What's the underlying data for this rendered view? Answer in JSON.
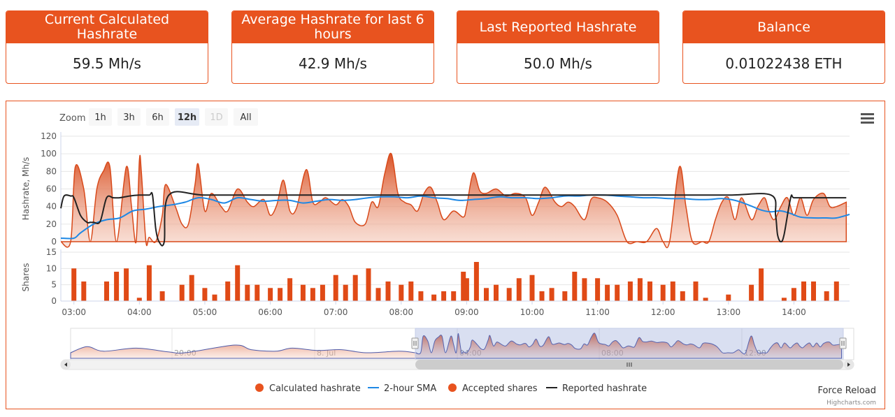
{
  "stats": [
    {
      "title": "Current Calculated Hashrate",
      "value": "59.5 Mh/s"
    },
    {
      "title": "Average Hashrate for last 6 hours",
      "value": "42.9 Mh/s"
    },
    {
      "title": "Last Reported Hashrate",
      "value": "50.0 Mh/s"
    },
    {
      "title": "Balance",
      "value": "0.01022438 ETH"
    }
  ],
  "zoom": {
    "label": "Zoom",
    "buttons": [
      "1h",
      "3h",
      "6h",
      "12h",
      "1D",
      "All"
    ],
    "selected": "12h",
    "disabled": [
      "1D"
    ]
  },
  "icons": {
    "menu": "hamburger-menu-icon",
    "scroll_left": "arrow-left-icon",
    "scroll_right": "arrow-right-icon",
    "scrollbar_grip": "grip-lines-icon",
    "navigator_handle": "drag-handle-icon"
  },
  "colors": {
    "accent": "#e8531f",
    "sma": "#1e88e5",
    "reported": "#222222"
  },
  "footer": {
    "force_reload": "Force Reload",
    "credits": "Highcharts.com"
  },
  "chart_data": [
    {
      "type": "area",
      "ylabel": "Hashrate, Mh/s",
      "ylim": [
        0,
        120
      ],
      "yticks": [
        0,
        20,
        40,
        60,
        80,
        100,
        120
      ],
      "xlim": [
        2.8,
        14.85
      ],
      "xticks": [
        "03:00",
        "04:00",
        "05:00",
        "06:00",
        "07:00",
        "08:00",
        "09:00",
        "10:00",
        "11:00",
        "12:00",
        "13:00",
        "14:00"
      ],
      "series": [
        {
          "name": "Calculated hashrate",
          "x": [
            2.8,
            2.95,
            3.02,
            3.15,
            3.25,
            3.35,
            3.45,
            3.55,
            3.65,
            3.8,
            3.88,
            3.95,
            4.0,
            4.03,
            4.1,
            4.15,
            4.25,
            4.35,
            4.4,
            4.55,
            4.65,
            4.75,
            4.85,
            4.9,
            5.0,
            5.1,
            5.25,
            5.35,
            5.5,
            5.65,
            5.75,
            5.9,
            6.0,
            6.1,
            6.2,
            6.3,
            6.4,
            6.55,
            6.65,
            6.75,
            6.85,
            7.0,
            7.1,
            7.2,
            7.3,
            7.45,
            7.55,
            7.65,
            7.75,
            7.85,
            7.95,
            8.05,
            8.15,
            8.25,
            8.35,
            8.45,
            8.55,
            8.65,
            8.8,
            8.95,
            9.0,
            9.1,
            9.2,
            9.3,
            9.45,
            9.6,
            9.75,
            9.9,
            10.0,
            10.1,
            10.2,
            10.35,
            10.45,
            10.55,
            10.65,
            10.8,
            10.9,
            11.0,
            11.15,
            11.3,
            11.45,
            11.6,
            11.75,
            11.9,
            12.0,
            12.1,
            12.25,
            12.35,
            12.45,
            12.6,
            12.7,
            12.8,
            12.9,
            13.0,
            13.1,
            13.2,
            13.35,
            13.45,
            13.55,
            13.62,
            13.7,
            13.8,
            13.9,
            14.0,
            14.1,
            14.2,
            14.3,
            14.45,
            14.55,
            14.65,
            14.8
          ],
          "values": [
            0,
            0,
            85,
            60,
            0,
            60,
            80,
            85,
            0,
            85,
            40,
            0,
            92,
            80,
            0,
            5,
            0,
            30,
            65,
            40,
            20,
            20,
            65,
            88,
            35,
            55,
            40,
            35,
            60,
            45,
            40,
            48,
            30,
            42,
            70,
            35,
            38,
            82,
            45,
            45,
            50,
            42,
            48,
            40,
            22,
            20,
            45,
            40,
            78,
            100,
            55,
            45,
            42,
            35,
            55,
            62,
            45,
            25,
            35,
            28,
            40,
            78,
            58,
            55,
            60,
            52,
            55,
            50,
            30,
            45,
            62,
            45,
            40,
            45,
            40,
            25,
            48,
            50,
            45,
            30,
            0,
            0,
            0,
            15,
            0,
            0,
            85,
            40,
            0,
            0,
            0,
            25,
            45,
            50,
            25,
            50,
            25,
            40,
            50,
            35,
            25,
            40,
            50,
            30,
            50,
            30,
            48,
            55,
            40,
            40,
            45
          ]
        },
        {
          "name": "2-hour SMA",
          "x": [
            2.8,
            3.0,
            3.1,
            3.3,
            3.5,
            3.7,
            3.9,
            4.1,
            4.3,
            4.5,
            4.7,
            4.9,
            5.1,
            5.3,
            5.5,
            5.7,
            5.9,
            6.1,
            6.3,
            6.5,
            6.7,
            6.9,
            7.1,
            7.3,
            7.5,
            7.7,
            7.9,
            8.1,
            8.3,
            8.5,
            8.7,
            8.9,
            9.1,
            9.3,
            9.5,
            9.7,
            9.9,
            10.1,
            10.3,
            10.5,
            10.7,
            10.9,
            11.1,
            11.3,
            11.5,
            11.7,
            11.9,
            12.1,
            12.3,
            12.5,
            12.7,
            12.9,
            13.1,
            13.3,
            13.5,
            13.65,
            13.8,
            13.95,
            14.1,
            14.3,
            14.5,
            14.65,
            14.85
          ],
          "values": [
            4,
            4,
            10,
            20,
            25,
            27,
            35,
            37,
            40,
            42,
            45,
            50,
            48,
            44,
            50,
            48,
            46,
            47,
            47,
            44,
            46,
            48,
            47,
            48,
            50,
            51,
            51,
            50,
            52,
            50,
            49,
            47,
            48,
            49,
            51,
            50,
            50,
            49,
            50,
            52,
            52,
            53,
            53,
            52,
            51,
            50,
            50,
            49,
            49,
            48,
            48,
            49,
            47,
            42,
            36,
            34,
            35,
            32,
            28,
            27,
            27,
            27,
            31
          ]
        },
        {
          "name": "Reported hashrate",
          "x": [
            2.8,
            2.85,
            2.95,
            3.0,
            3.1,
            3.2,
            3.25,
            3.3,
            3.4,
            3.5,
            3.6,
            3.7,
            3.85,
            4.0,
            4.15,
            4.2,
            4.25,
            4.3,
            4.38,
            4.45,
            5.0,
            6.0,
            7.0,
            8.0,
            9.0,
            10.0,
            11.0,
            12.0,
            13.0,
            13.65,
            13.72,
            13.75,
            13.8,
            13.85,
            13.95,
            14.0,
            14.2,
            14.5,
            14.8
          ],
          "values": [
            38,
            52,
            52,
            50,
            30,
            22,
            22,
            22,
            23,
            50,
            50,
            50,
            52,
            53,
            53,
            53,
            15,
            0,
            0,
            53,
            53,
            53,
            53,
            53,
            53,
            53,
            53,
            53,
            53,
            53,
            30,
            8,
            0,
            8,
            50,
            50,
            50,
            50,
            50
          ]
        },
        {
          "name": "Accepted shares",
          "x": [
            2.8,
            3.0,
            3.15,
            3.5,
            3.65,
            3.8,
            4.0,
            4.15,
            4.35,
            4.65,
            4.8,
            5.0,
            5.15,
            5.35,
            5.5,
            5.65,
            5.8,
            6.0,
            6.15,
            6.3,
            6.5,
            6.65,
            6.8,
            7.0,
            7.15,
            7.3,
            7.5,
            7.65,
            7.8,
            8.0,
            8.15,
            8.3,
            8.5,
            8.65,
            8.8,
            8.95,
            9.0,
            9.15,
            9.3,
            9.45,
            9.65,
            9.8,
            10.0,
            10.15,
            10.3,
            10.5,
            10.65,
            10.8,
            11.0,
            11.15,
            11.3,
            11.5,
            11.65,
            11.8,
            12.0,
            12.15,
            12.3,
            12.5,
            12.65,
            12.8,
            13.0,
            13.15,
            13.35,
            13.5,
            13.7,
            13.85,
            14.0,
            14.15,
            14.3,
            14.5,
            14.65,
            14.8
          ],
          "values": [
            0,
            10,
            6,
            6,
            9,
            10,
            1,
            11,
            3,
            5,
            8,
            4,
            2,
            6,
            11,
            5,
            5,
            4,
            4,
            7,
            5,
            4,
            5,
            8,
            5,
            8,
            10,
            4,
            6,
            5,
            6,
            3,
            2,
            3,
            3,
            9,
            7,
            12,
            4,
            5,
            4,
            7,
            8,
            3,
            4,
            3,
            9,
            7,
            7,
            5,
            5,
            6,
            7,
            6,
            5,
            6,
            3,
            6,
            1,
            0,
            2,
            0,
            5,
            10,
            0,
            1,
            4,
            6,
            6,
            3,
            6,
            0
          ]
        }
      ]
    },
    {
      "type": "bar",
      "ylabel": "Shares",
      "ylim": [
        0,
        15
      ],
      "yticks": [
        0,
        5,
        10,
        15
      ]
    },
    {
      "type": "area",
      "role": "navigator",
      "xticks": [
        "20:00",
        "8. Jul",
        "04:00",
        "08:00",
        "12:00"
      ]
    }
  ]
}
